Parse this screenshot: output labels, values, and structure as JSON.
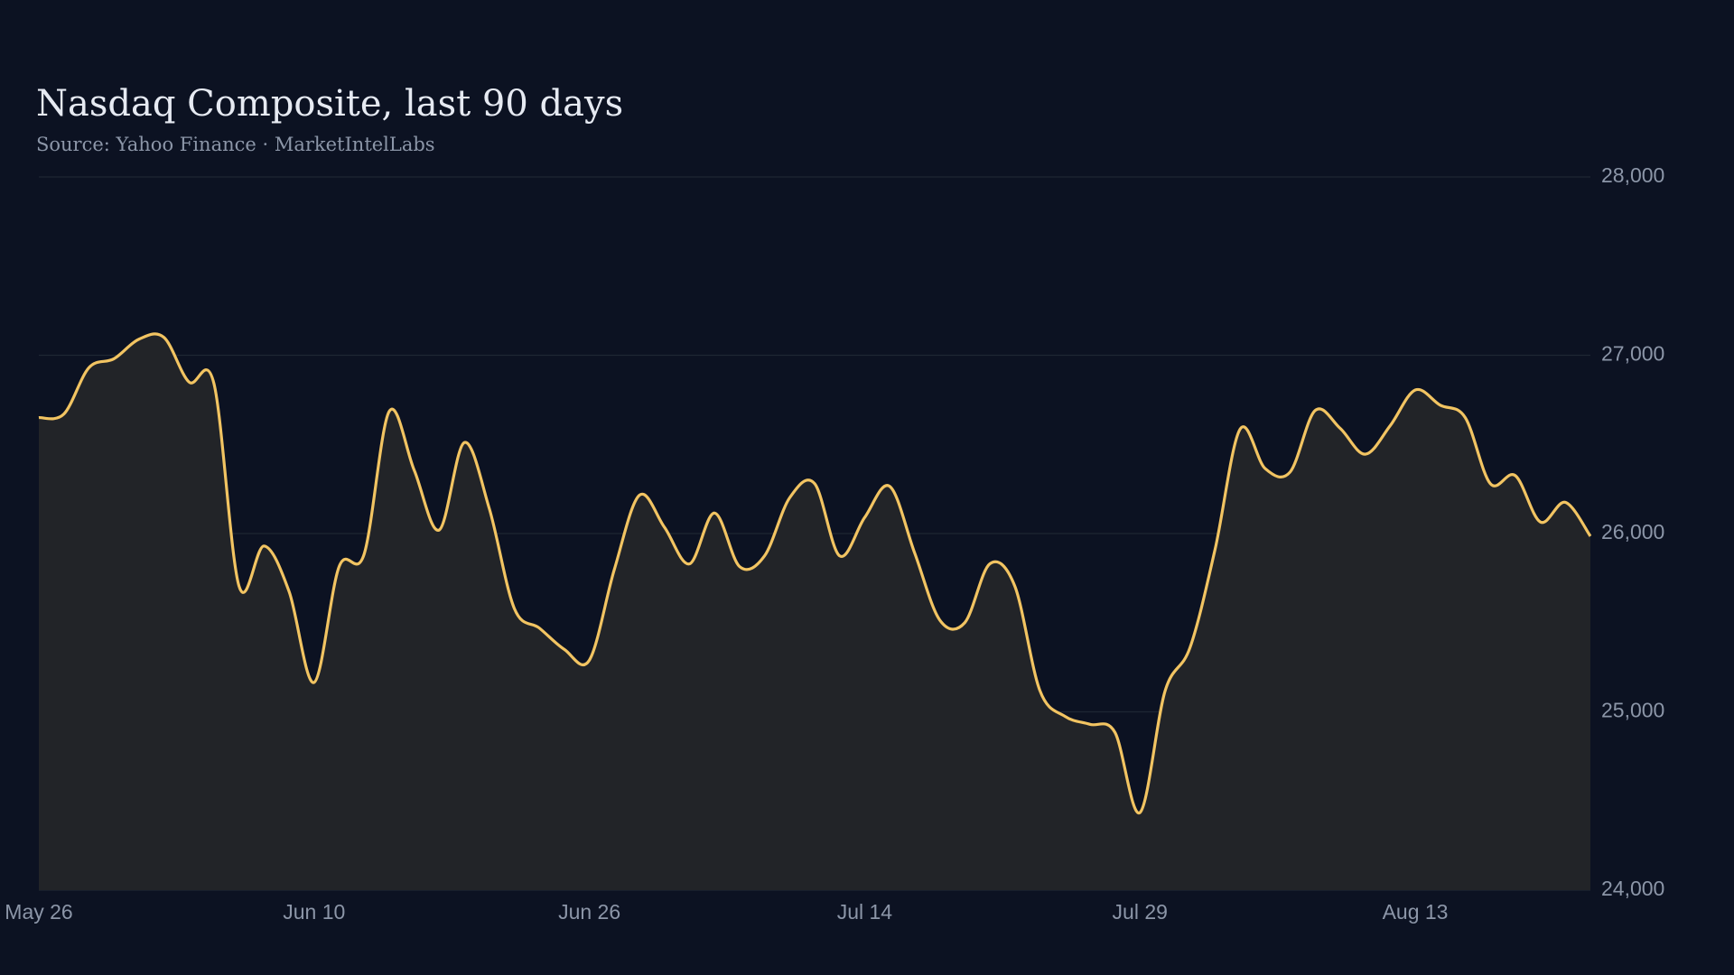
{
  "chart_data": {
    "type": "line",
    "title": "Nasdaq Composite, last 90 days",
    "subtitle": "Source: Yahoo Finance · MarketIntelLabs",
    "categories": [
      "May 26",
      null,
      null,
      null,
      null,
      null,
      null,
      null,
      null,
      null,
      null,
      "Jun 10",
      null,
      null,
      null,
      null,
      null,
      null,
      null,
      null,
      null,
      null,
      "Jun 26",
      null,
      null,
      null,
      null,
      null,
      null,
      null,
      null,
      null,
      null,
      "Jul 14",
      null,
      null,
      null,
      null,
      null,
      null,
      null,
      null,
      null,
      null,
      "Jul 29",
      null,
      null,
      null,
      null,
      null,
      null,
      null,
      null,
      null,
      null,
      "Aug 13",
      null,
      null,
      null,
      null,
      null,
      null,
      null
    ],
    "values": [
      26650,
      26670,
      26930,
      26980,
      27090,
      27100,
      26850,
      26840,
      25705,
      25930,
      25675,
      25165,
      25815,
      25885,
      26685,
      26355,
      26020,
      26510,
      26140,
      25580,
      25470,
      25350,
      25290,
      25800,
      26215,
      26035,
      25830,
      26115,
      25815,
      25875,
      26200,
      26280,
      25875,
      26090,
      26265,
      25890,
      25515,
      25500,
      25830,
      25705,
      25120,
      24975,
      24930,
      24885,
      24435,
      25115,
      25360,
      25910,
      26585,
      26365,
      26345,
      26690,
      26590,
      26445,
      26605,
      26805,
      26720,
      26650,
      26280,
      26325,
      26065,
      26175,
      25985
    ],
    "color": "#f2c462",
    "fill_color": "#222428",
    "ylim": [
      24000,
      28000
    ],
    "yticks": [
      {
        "value": 24000,
        "label": "24,000"
      },
      {
        "value": 25000,
        "label": "25,000"
      },
      {
        "value": 26000,
        "label": "26,000"
      },
      {
        "value": 27000,
        "label": "27,000"
      },
      {
        "value": 28000,
        "label": "28,000"
      }
    ],
    "grid": true
  }
}
